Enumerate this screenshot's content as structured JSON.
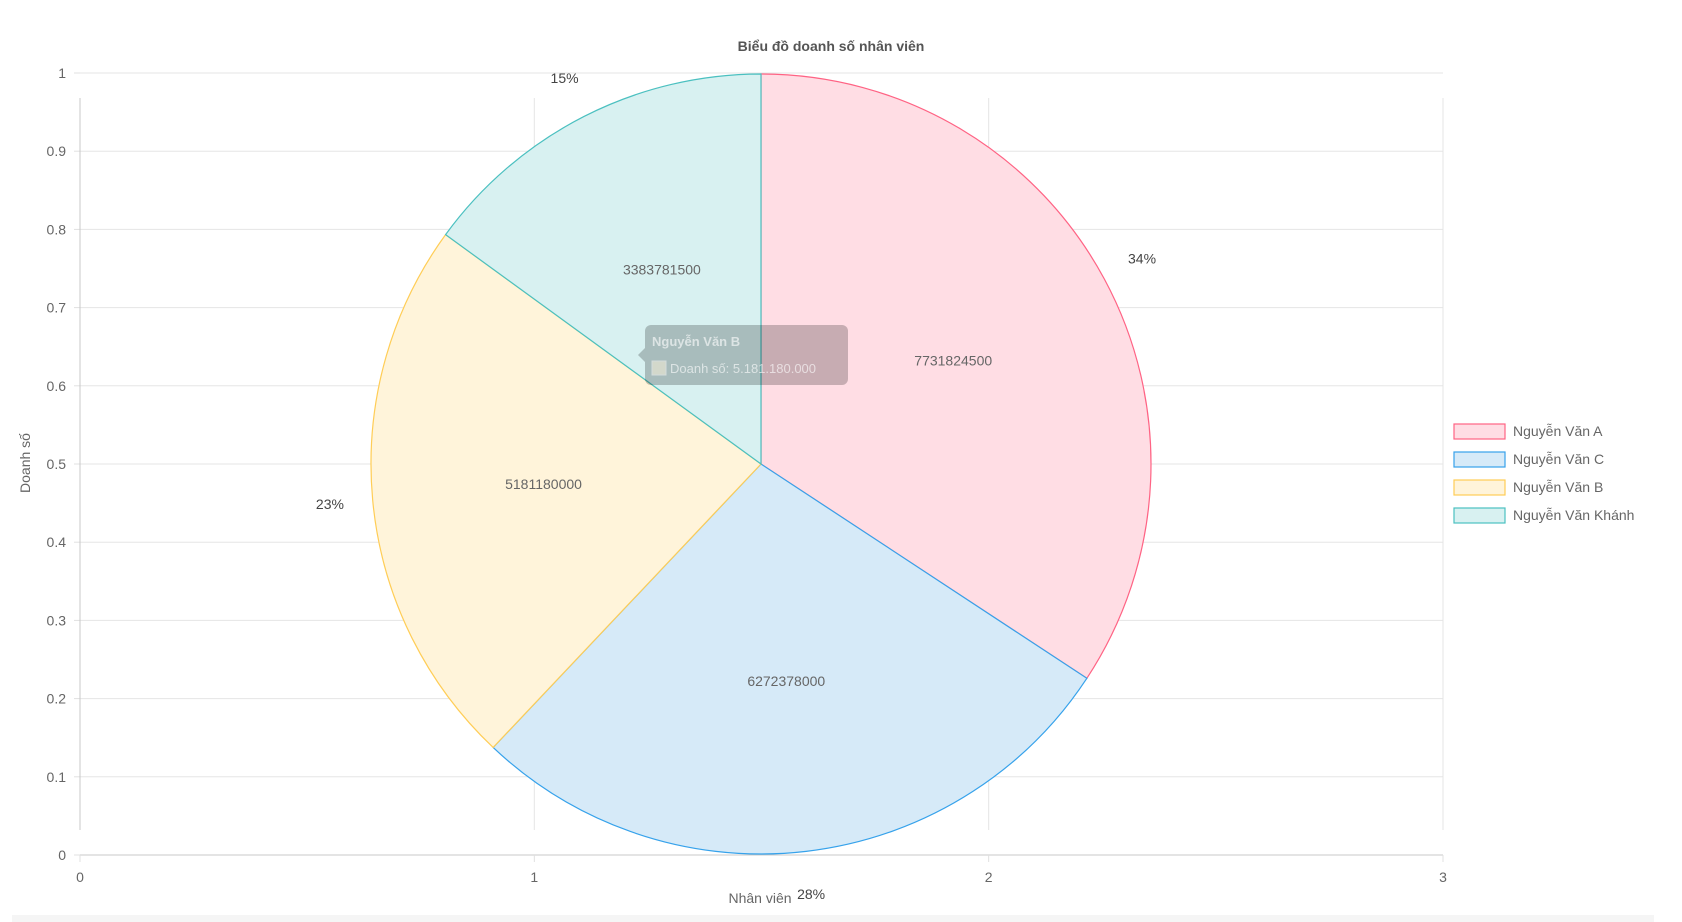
{
  "chart_data": {
    "type": "pie",
    "title": "Biểu đồ doanh số nhân viên",
    "xlabel": "Nhân viên",
    "ylabel": "Doanh số",
    "xlim": [
      0,
      3
    ],
    "ylim": [
      0,
      1
    ],
    "x_ticks": [
      "0",
      "1",
      "2",
      "3"
    ],
    "y_ticks": [
      "0",
      "0.1",
      "0.2",
      "0.3",
      "0.4",
      "0.5",
      "0.6",
      "0.7",
      "0.8",
      "0.9",
      "1"
    ],
    "grid": true,
    "legend_position": "right",
    "slices": [
      {
        "label": "Nguyễn Văn A",
        "value": 7731824500,
        "value_label": "7731824500",
        "percent_label": "34%",
        "color": "#ff6384",
        "fill": "#ffdde4"
      },
      {
        "label": "Nguyễn Văn C",
        "value": 6272378000,
        "value_label": "6272378000",
        "percent_label": "28%",
        "color": "#36a2eb",
        "fill": "#d6eaf8"
      },
      {
        "label": "Nguyễn Văn B",
        "value": 5181180000,
        "value_label": "5181180000",
        "percent_label": "23%",
        "color": "#ffcd56",
        "fill": "#fff4da"
      },
      {
        "label": "Nguyễn Văn Khánh",
        "value": 3383781500,
        "value_label": "3383781500",
        "percent_label": "15%",
        "color": "#4bc0c0",
        "fill": "#d8f1f1"
      }
    ],
    "tooltip": {
      "title": "Nguyễn Văn B",
      "body": "Doanh số: 5.181.180.000",
      "color": "#ffcd56"
    }
  }
}
